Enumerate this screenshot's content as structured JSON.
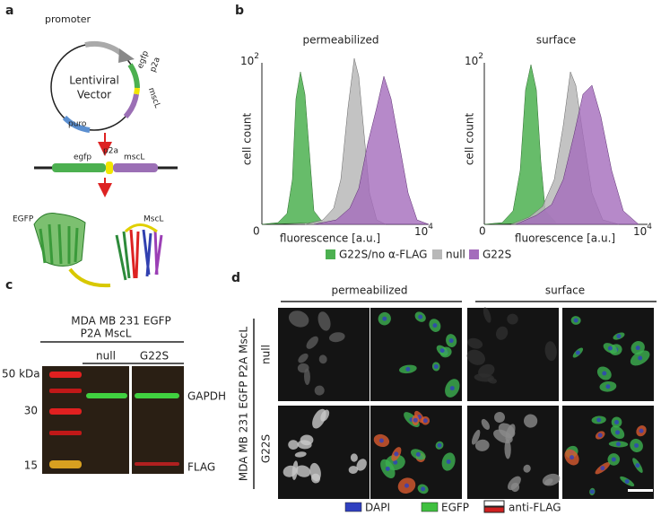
{
  "panel_a": {
    "label": "a",
    "plasmid": {
      "promoter": "promoter",
      "name_line1": "Lentiviral",
      "name_line2": "Vector",
      "egfp": "egfp",
      "p2a": "p2a",
      "mscl": "mscL",
      "puro": "puro"
    },
    "construct": {
      "egfp": "egfp",
      "p2a": "p2a",
      "mscl": "mscL"
    },
    "proteins": [
      "EGFP",
      "MscL"
    ]
  },
  "panel_b": {
    "label": "b",
    "plots": [
      {
        "title": "permeabilized",
        "y_label": "cell count",
        "x_label": "fluorescence [a.u.]",
        "y_top": {
          "base": "10",
          "exp": "2"
        },
        "x_start": "0",
        "x_end": {
          "base": "10",
          "exp": "4"
        }
      },
      {
        "title": "surface",
        "y_label": "cell count",
        "x_label": "fluorescence [a.u.]",
        "y_top": {
          "base": "10",
          "exp": "2"
        },
        "x_start": "0",
        "x_end": {
          "base": "10",
          "exp": "4"
        }
      }
    ],
    "legend": [
      "G22S/no α-FLAG",
      "null",
      "G22S"
    ]
  },
  "panel_c": {
    "label": "c",
    "header_line1": "MDA MB 231  EGFP",
    "header_line2": "P2A MscL",
    "lanes": [
      "null",
      "G22S"
    ],
    "markers": [
      "50 kDa",
      "30",
      "15"
    ],
    "bands": [
      "GAPDH",
      "FLAG"
    ]
  },
  "panel_d": {
    "label": "d",
    "columns": [
      "permeabilized",
      "surface"
    ],
    "cell_line": "MDA MB 231 EGFP P2A MscL",
    "rows": [
      "null",
      "G22S"
    ],
    "legend": [
      "DAPI",
      "EGFP",
      "anti-FLAG"
    ]
  }
}
